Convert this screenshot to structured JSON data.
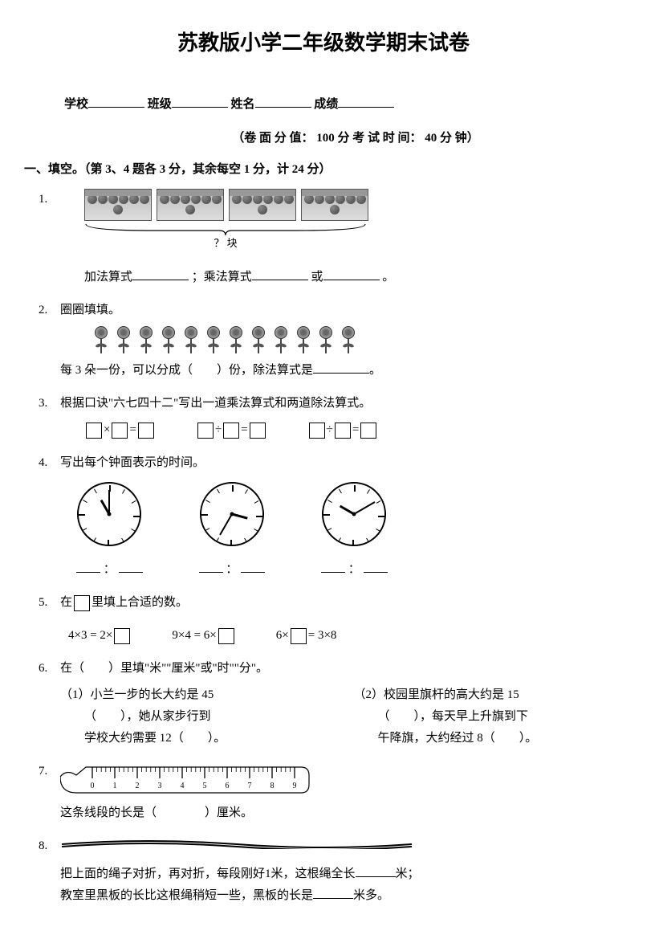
{
  "title": "苏教版小学二年级数学期末试卷",
  "info": {
    "school": "学校",
    "class": "班级",
    "name": "姓名",
    "score": "成绩"
  },
  "meta": "（卷 面 分 值： 100 分    考 试 时 间： 40 分 钟）",
  "section1": "一、填空。（第 3、4 题各 3 分，其余每空 1 分，计 24 分）",
  "q1": {
    "num": "1.",
    "bracket_label": "？ 块",
    "line": "加法算式",
    "sep1": "；乘法算式",
    "sep2": "或",
    "end": "。"
  },
  "q2": {
    "num": "2.",
    "head": "圈圈填填。",
    "line_a": "每 3 朵一份，可以分成（　　）份，除法算式是",
    "end": "。"
  },
  "q3": {
    "num": "3.",
    "head": "根据口诀\"六七四十二\"写出一道乘法算式和两道除法算式。"
  },
  "q4": {
    "num": "4.",
    "head": "写出每个钟面表示的时间。",
    "colon": "："
  },
  "q5": {
    "num": "5.",
    "head": "在",
    "head2": "里填上合适的数。",
    "e1": "4×3 = 2×",
    "e2": "9×4 = 6×",
    "e3a": "6×",
    "e3b": "= 3×8"
  },
  "q6": {
    "num": "6.",
    "head": "在（　　）里填\"米\"\"厘米\"或\"时\"\"分\"。",
    "p1a": "（1）小兰一步的长大约是 45",
    "p1b": "（　　），她从家步行到",
    "p1c": "学校大约需要 12（　　）。",
    "p2a": "（2）校园里旗杆的高大约是 15",
    "p2b": "（　　），每天早上升旗到下",
    "p2c": "午降旗，大约经过 8（　　）。"
  },
  "q7": {
    "num": "7.",
    "line": "这条线段的长是（　　　　）厘米。"
  },
  "q8": {
    "num": "8.",
    "l1a": "把上面的绳子对折，再对折，每段刚好1米，这根绳全长",
    "l1b": "米；",
    "l2a": "教室里黑板的长比这根绳稍短一些，黑板的长是",
    "l2b": "米多。"
  },
  "clocks": [
    {
      "h_angle": -30,
      "m_angle": 0
    },
    {
      "h_angle": 105,
      "m_angle": 210
    },
    {
      "h_angle": 300,
      "m_angle": 60
    }
  ],
  "ruler_ticks": [
    "0",
    "1",
    "2",
    "3",
    "4",
    "5",
    "6",
    "7",
    "8",
    "9"
  ],
  "colors": {
    "text": "#000000",
    "bg": "#ffffff",
    "gray": "#888888"
  }
}
